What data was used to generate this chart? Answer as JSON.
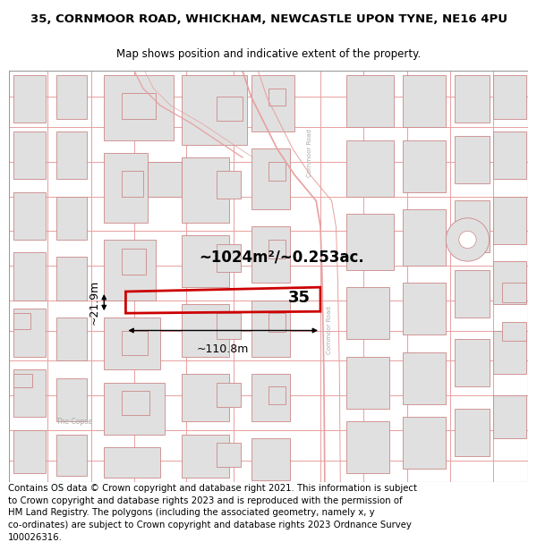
{
  "title": "35, CORNMOOR ROAD, WHICKHAM, NEWCASTLE UPON TYNE, NE16 4PU",
  "subtitle": "Map shows position and indicative extent of the property.",
  "footer": "Contains OS data © Crown copyright and database right 2021. This information is subject\nto Crown copyright and database rights 2023 and is reproduced with the permission of\nHM Land Registry. The polygons (including the associated geometry, namely x, y\nco-ordinates) are subject to Crown copyright and database rights 2023 Ordnance Survey\n100026316.",
  "title_fontsize": 9.5,
  "subtitle_fontsize": 8.5,
  "footer_fontsize": 7.5,
  "map_bg": "#ffffff",
  "road_line_color": "#e8a0a0",
  "highlight_color": "#cc0000",
  "building_fill": "#e0e0e0",
  "building_edge": "#cc8888",
  "label_area": "~1024m²/~0.253ac.",
  "label_width": "~110.8m",
  "label_height": "~21.9m",
  "label_number": "35",
  "road_label_color": "#aaaaaa",
  "copse_label": "The Copse"
}
